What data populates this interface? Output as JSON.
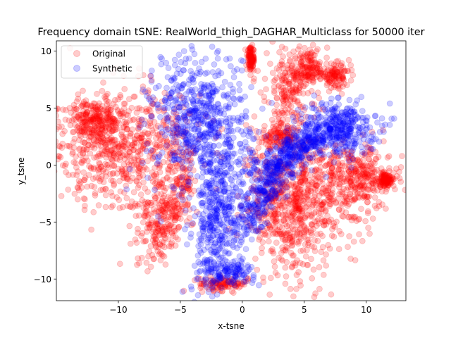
{
  "chart_data": {
    "type": "scatter",
    "title": "Frequency domain tSNE: RealWorld_thigh_DAGHAR_Multiclass for 50000 iter",
    "xlabel": "x-tsne",
    "ylabel": "y_tsne",
    "xlim": [
      -15.0,
      13.2
    ],
    "ylim": [
      -11.9,
      10.9
    ],
    "x_ticks": [
      -10,
      -5,
      0,
      5,
      10
    ],
    "y_ticks": [
      -10,
      -5,
      0,
      5,
      10
    ],
    "grid": false,
    "legend_placement": "top-left",
    "series": [
      {
        "name": "Original",
        "color": "#ff0000",
        "alpha": 0.2,
        "clusters": [
          {
            "center": [
              -9.5,
              1.5
            ],
            "spread": [
              2.4,
              3.0
            ],
            "rotation_deg": -55,
            "weight": 6
          },
          {
            "center": [
              -12.0,
              3.8
            ],
            "spread": [
              1.2,
              1.0
            ],
            "rotation_deg": 0,
            "weight": 2
          },
          {
            "center": [
              -6.0,
              -4.0
            ],
            "spread": [
              1.0,
              2.4
            ],
            "rotation_deg": -20,
            "weight": 3
          },
          {
            "center": [
              -1.5,
              -10.4
            ],
            "spread": [
              1.0,
              0.3
            ],
            "rotation_deg": 0,
            "weight": 1
          },
          {
            "center": [
              3.5,
              -4.0
            ],
            "spread": [
              1.6,
              3.2
            ],
            "rotation_deg": 10,
            "weight": 4
          },
          {
            "center": [
              6.0,
              -2.0
            ],
            "spread": [
              2.4,
              2.4
            ],
            "rotation_deg": 0,
            "weight": 4
          },
          {
            "center": [
              9.5,
              -1.0
            ],
            "spread": [
              1.4,
              1.4
            ],
            "rotation_deg": 0,
            "weight": 2
          },
          {
            "center": [
              4.0,
              7.0
            ],
            "spread": [
              1.0,
              1.6
            ],
            "rotation_deg": 0,
            "weight": 2
          },
          {
            "center": [
              5.5,
              8.5
            ],
            "spread": [
              0.7,
              0.8
            ],
            "rotation_deg": 0,
            "weight": 1
          },
          {
            "center": [
              7.5,
              7.8
            ],
            "spread": [
              0.6,
              0.5
            ],
            "rotation_deg": 0,
            "weight": 1
          },
          {
            "center": [
              0.7,
              9.3
            ],
            "spread": [
              0.15,
              0.5
            ],
            "rotation_deg": 0,
            "weight": 1
          },
          {
            "center": [
              3.0,
              2.5
            ],
            "spread": [
              0.7,
              0.5
            ],
            "rotation_deg": 0,
            "weight": 1
          },
          {
            "center": [
              11.5,
              -1.3
            ],
            "spread": [
              0.4,
              0.3
            ],
            "rotation_deg": 0,
            "weight": 1
          }
        ]
      },
      {
        "name": "Synthetic",
        "color": "#0000ff",
        "alpha": 0.2,
        "clusters": [
          {
            "center": [
              -3.2,
              3.5
            ],
            "spread": [
              1.9,
              3.2
            ],
            "rotation_deg": 8,
            "weight": 6
          },
          {
            "center": [
              -2.2,
              -5.0
            ],
            "spread": [
              0.8,
              3.2
            ],
            "rotation_deg": -5,
            "weight": 3
          },
          {
            "center": [
              -1.0,
              -9.3
            ],
            "spread": [
              1.0,
              0.5
            ],
            "rotation_deg": 0,
            "weight": 1
          },
          {
            "center": [
              1.8,
              -2.5
            ],
            "spread": [
              0.7,
              3.0
            ],
            "rotation_deg": -30,
            "weight": 3
          },
          {
            "center": [
              4.5,
              1.5
            ],
            "spread": [
              2.2,
              0.8
            ],
            "rotation_deg": 35,
            "weight": 3
          },
          {
            "center": [
              7.8,
              3.2
            ],
            "spread": [
              1.5,
              1.2
            ],
            "rotation_deg": 0,
            "weight": 3
          }
        ]
      }
    ]
  }
}
